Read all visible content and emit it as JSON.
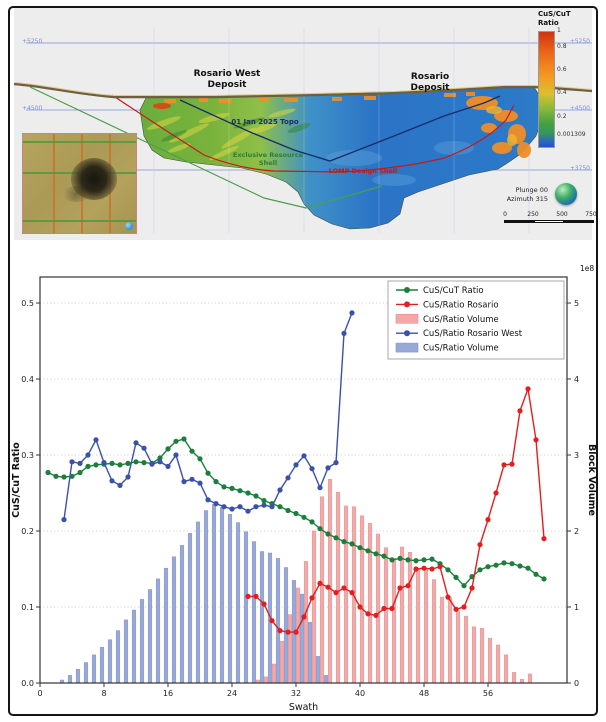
{
  "section": {
    "colorbar": {
      "title_l1": "CuS/CuT",
      "title_l2": "Ratio",
      "ticks": [
        "1",
        "0.8",
        "0.6",
        "0.4",
        "0.2",
        "0.001309"
      ]
    },
    "elevations_left": [
      "+5250",
      "+4500"
    ],
    "elevations_right": [
      "+5250",
      "+4500",
      "+3750"
    ],
    "labels": {
      "rosario_west_l1": "Rosario West",
      "rosario_west_l2": "Deposit",
      "rosario_l1": "Rosario",
      "rosario_l2": "Deposit",
      "topo": "01 Jan 2025 Topo",
      "lomp_shell": "LOMP Design Shell",
      "resource_l1": "Exclusive Resource",
      "resource_l2": "Shell"
    },
    "view_info": {
      "plunge": "Plunge 00",
      "azimuth": "Azimuth 315"
    },
    "scalebar_ticks": [
      "0",
      "250",
      "500",
      "750"
    ]
  },
  "chart_data": {
    "type": "combo",
    "xlabel": "Swath",
    "ylabel_left": "CuS/CuT Ratio",
    "ylabel_right": "Block Volume",
    "right_axis_multiplier": "1e8",
    "x_ticks": [
      0,
      8,
      16,
      24,
      32,
      40,
      48,
      56
    ],
    "y_left_ticks": [
      0.0,
      0.1,
      0.2,
      0.3,
      0.4,
      0.5
    ],
    "y_right_ticks": [
      0,
      1,
      2,
      3,
      4,
      5
    ],
    "x_range": [
      0,
      66
    ],
    "y_left_range": [
      0,
      0.533
    ],
    "grid": "dotted-horizontal",
    "legend_position": "upper-right",
    "series": [
      {
        "name": "CuS/CuT Ratio",
        "kind": "line",
        "axis": "left",
        "color": "#1b7e3c",
        "x": [
          1,
          2,
          3,
          4,
          5,
          6,
          7,
          8,
          9,
          10,
          11,
          12,
          13,
          14,
          15,
          16,
          17,
          18,
          19,
          20,
          21,
          22,
          23,
          24,
          25,
          26,
          27,
          28,
          29,
          30,
          31,
          32,
          33,
          34,
          35,
          36,
          37,
          38,
          39,
          40,
          41,
          42,
          43,
          44,
          45,
          46,
          47,
          48,
          49,
          50,
          51,
          52,
          53,
          54,
          55,
          56,
          57,
          58,
          59,
          60,
          61,
          62,
          63
        ],
        "y": [
          0.277,
          0.272,
          0.271,
          0.272,
          0.277,
          0.285,
          0.287,
          0.288,
          0.289,
          0.287,
          0.289,
          0.291,
          0.29,
          0.289,
          0.296,
          0.308,
          0.318,
          0.321,
          0.305,
          0.295,
          0.276,
          0.265,
          0.258,
          0.256,
          0.253,
          0.25,
          0.246,
          0.24,
          0.236,
          0.232,
          0.227,
          0.223,
          0.218,
          0.212,
          0.203,
          0.196,
          0.191,
          0.186,
          0.183,
          0.178,
          0.174,
          0.17,
          0.167,
          0.162,
          0.164,
          0.162,
          0.161,
          0.162,
          0.163,
          0.157,
          0.149,
          0.139,
          0.128,
          0.14,
          0.149,
          0.153,
          0.155,
          0.158,
          0.157,
          0.154,
          0.151,
          0.143,
          0.137
        ]
      },
      {
        "name": "CuS/Ratio Rosario",
        "kind": "line",
        "axis": "left",
        "color": "#e21f1f",
        "x": [
          26,
          27,
          28,
          29,
          30,
          31,
          32,
          33,
          34,
          35,
          36,
          37,
          38,
          39,
          40,
          41,
          42,
          43,
          44,
          45,
          46,
          47,
          48,
          49,
          50,
          51,
          52,
          53,
          54,
          55,
          56,
          57,
          58,
          59,
          60,
          61,
          62,
          63
        ],
        "y": [
          0.114,
          0.114,
          0.104,
          0.082,
          0.069,
          0.067,
          0.067,
          0.087,
          0.112,
          0.131,
          0.126,
          0.119,
          0.125,
          0.119,
          0.1,
          0.091,
          0.089,
          0.098,
          0.098,
          0.125,
          0.128,
          0.15,
          0.151,
          0.15,
          0.153,
          0.113,
          0.097,
          0.1,
          0.125,
          0.182,
          0.215,
          0.25,
          0.287,
          0.288,
          0.358,
          0.387,
          0.32,
          0.19
        ]
      },
      {
        "name": "CuS/Ratio Volume",
        "kind": "bar",
        "axis": "right",
        "color": "#f5a8a8",
        "edge": "#e89090",
        "x": [
          27,
          28,
          29,
          30,
          31,
          32,
          33,
          34,
          35,
          36,
          37,
          38,
          39,
          40,
          41,
          42,
          43,
          44,
          45,
          46,
          47,
          48,
          49,
          50,
          51,
          52,
          53,
          54,
          55,
          56,
          57,
          58,
          59,
          60,
          61
        ],
        "y": [
          0.04,
          0.08,
          0.25,
          0.55,
          0.9,
          1.25,
          1.6,
          2.0,
          2.45,
          2.68,
          2.51,
          2.33,
          2.32,
          2.2,
          2.1,
          1.96,
          1.78,
          1.64,
          1.79,
          1.72,
          1.51,
          1.51,
          1.36,
          1.13,
          1.12,
          0.95,
          0.88,
          0.74,
          0.72,
          0.59,
          0.5,
          0.37,
          0.14,
          0.05,
          0.12
        ]
      },
      {
        "name": "CuS/Ratio Rosario West",
        "kind": "line",
        "axis": "left",
        "color": "#3952a8",
        "x": [
          3,
          4,
          5,
          6,
          7,
          8,
          9,
          10,
          11,
          12,
          13,
          14,
          15,
          16,
          17,
          18,
          19,
          20,
          21,
          22,
          23,
          24,
          25,
          26,
          27,
          28,
          29,
          30,
          31,
          32,
          33,
          34,
          35,
          36,
          37,
          38,
          39
        ],
        "y": [
          0.215,
          0.291,
          0.289,
          0.3,
          0.32,
          0.29,
          0.266,
          0.26,
          0.271,
          0.316,
          0.309,
          0.288,
          0.291,
          0.285,
          0.3,
          0.265,
          0.268,
          0.263,
          0.241,
          0.236,
          0.232,
          0.229,
          0.232,
          0.226,
          0.232,
          0.234,
          0.232,
          0.254,
          0.27,
          0.287,
          0.299,
          0.282,
          0.257,
          0.283,
          0.29,
          0.46,
          0.487
        ]
      },
      {
        "name": "CuS/Ratio Volume",
        "kind": "bar",
        "axis": "right",
        "color": "#98a8d8",
        "edge": "#8596c8",
        "x": [
          3,
          4,
          5,
          6,
          7,
          8,
          9,
          10,
          11,
          12,
          13,
          14,
          15,
          16,
          17,
          18,
          19,
          20,
          21,
          22,
          23,
          24,
          25,
          26,
          27,
          28,
          29,
          30,
          31,
          32,
          33,
          34,
          35,
          36
        ],
        "y": [
          0.04,
          0.1,
          0.18,
          0.27,
          0.37,
          0.47,
          0.57,
          0.69,
          0.83,
          0.96,
          1.1,
          1.23,
          1.37,
          1.51,
          1.66,
          1.81,
          1.97,
          2.12,
          2.27,
          2.35,
          2.31,
          2.22,
          2.11,
          1.99,
          1.86,
          1.73,
          1.71,
          1.64,
          1.52,
          1.35,
          1.17,
          0.8,
          0.35,
          0.1
        ]
      }
    ]
  }
}
